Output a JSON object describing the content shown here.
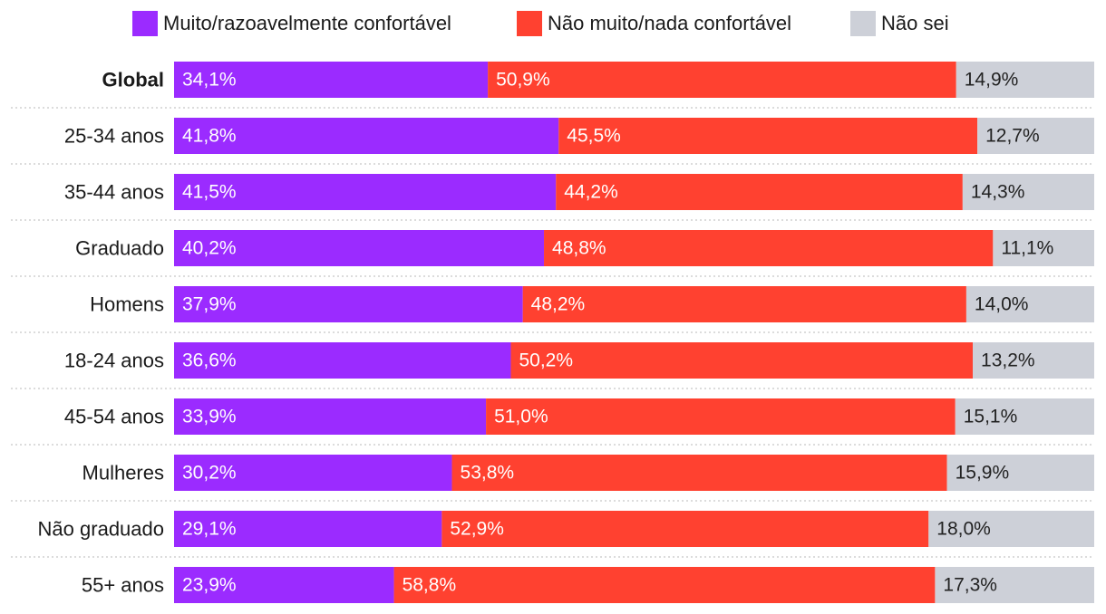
{
  "colors": {
    "series": [
      "#9b2bff",
      "#ff4130",
      "#cdd0d8"
    ],
    "text_on_bar": [
      "#ffffff",
      "#ffffff",
      "#222222"
    ],
    "separator": "#c8c8c8",
    "label": "#1a1a1a"
  },
  "chart_data": {
    "type": "bar",
    "orientation": "horizontal",
    "stacked": true,
    "title": "",
    "xlabel": "",
    "ylabel": "",
    "xlim": [
      0,
      100
    ],
    "legend_position": "top",
    "value_format": "pt-BR percent with one decimal",
    "categories": [
      "Global",
      "25-34 anos",
      "35-44 anos",
      "Graduado",
      "Homens",
      "18-24 anos",
      "45-54 anos",
      "Mulheres",
      "Não graduado",
      "55+ anos"
    ],
    "bold_categories": [
      "Global"
    ],
    "series": [
      {
        "name": "Muito/razoavelmente confortável",
        "values": [
          34.1,
          41.8,
          41.5,
          40.2,
          37.9,
          36.6,
          33.9,
          30.2,
          29.1,
          23.9
        ],
        "labels": [
          "34,1%",
          "41,8%",
          "41,5%",
          "40,2%",
          "37,9%",
          "36,6%",
          "33,9%",
          "30,2%",
          "29,1%",
          "23,9%"
        ]
      },
      {
        "name": "Não muito/nada confortável",
        "values": [
          50.9,
          45.5,
          44.2,
          48.8,
          48.2,
          50.2,
          51.0,
          53.8,
          52.9,
          58.8
        ],
        "labels": [
          "50,9%",
          "45,5%",
          "44,2%",
          "48,8%",
          "48,2%",
          "50,2%",
          "51,0%",
          "53,8%",
          "52,9%",
          "58,8%"
        ]
      },
      {
        "name": "Não sei",
        "values": [
          14.9,
          12.7,
          14.3,
          11.1,
          14.0,
          13.2,
          15.1,
          15.9,
          18.0,
          17.3
        ],
        "labels": [
          "14,9%",
          "12,7%",
          "14,3%",
          "11,1%",
          "14,0%",
          "13,2%",
          "15,1%",
          "15,9%",
          "18,0%",
          "17,3%"
        ]
      }
    ]
  }
}
